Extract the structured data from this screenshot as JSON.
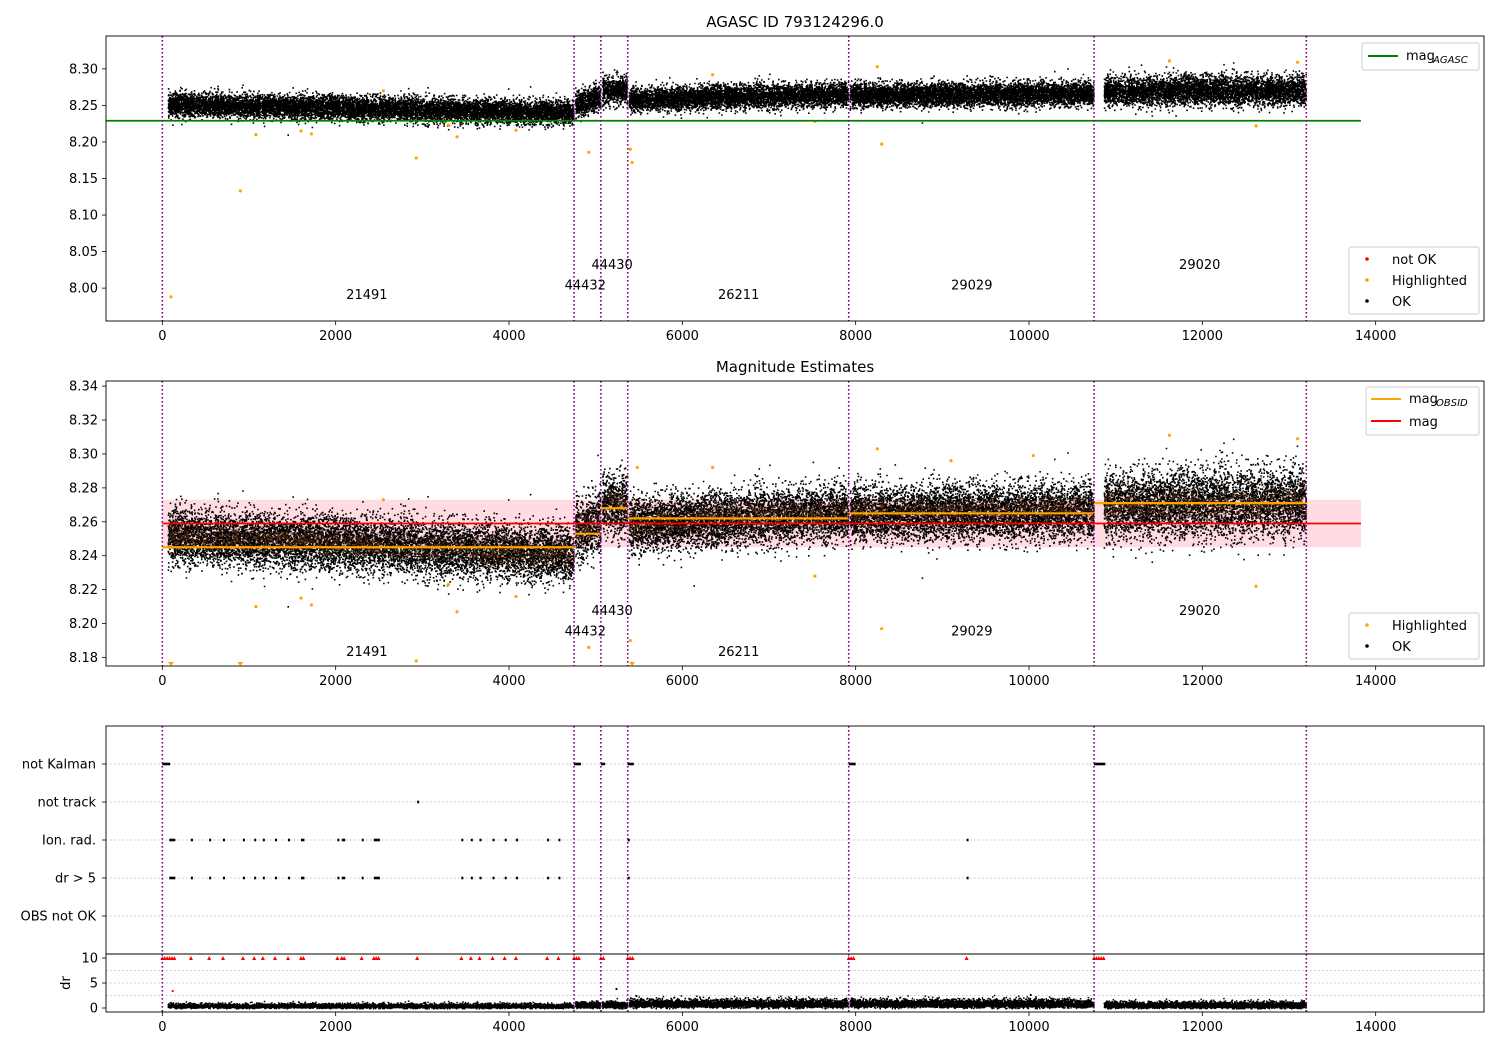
{
  "chart_data": [
    {
      "type": "scatter",
      "title": "AGASC ID 793124296.0",
      "xlim": [
        -650,
        15250
      ],
      "ylim": [
        7.955,
        8.345
      ],
      "x_ticks": [
        0,
        2000,
        4000,
        6000,
        8000,
        10000,
        12000,
        14000
      ],
      "y_ticks": [
        8.0,
        8.05,
        8.1,
        8.15,
        8.2,
        8.25,
        8.3
      ],
      "y_tick_labels": [
        "8.00",
        "8.05",
        "8.10",
        "8.15",
        "8.20",
        "8.25",
        "8.30"
      ],
      "grid": false,
      "obs_boundaries": [
        0,
        4750,
        5060,
        5370,
        7920,
        10750,
        13200
      ],
      "obs_labels": [
        {
          "text": "21491",
          "x": 2360,
          "y": 7.985
        },
        {
          "text": "44432",
          "x": 4880,
          "y": 7.998
        },
        {
          "text": "44430",
          "x": 5190,
          "y": 8.026
        },
        {
          "text": "26211",
          "x": 6650,
          "y": 7.985
        },
        {
          "text": "29029",
          "x": 9340,
          "y": 7.998
        },
        {
          "text": "29020",
          "x": 11970,
          "y": 8.026
        }
      ],
      "reference_line": {
        "name": "mag_AGASC",
        "value": 8.229,
        "x_range": [
          0,
          13830
        ],
        "color": "#008000"
      },
      "segments": [
        {
          "x0": 60,
          "x1": 4740,
          "y0": 8.252,
          "y1": 8.241,
          "spread": 0.008
        },
        {
          "x0": 4760,
          "x1": 5050,
          "y0": 8.253,
          "y1": 8.262,
          "spread": 0.009
        },
        {
          "x0": 5070,
          "x1": 5360,
          "y0": 8.272,
          "y1": 8.27,
          "spread": 0.009
        },
        {
          "x0": 5380,
          "x1": 7910,
          "y0": 8.259,
          "y1": 8.266,
          "spread": 0.008
        },
        {
          "x0": 7930,
          "x1": 10740,
          "y0": 8.265,
          "y1": 8.267,
          "spread": 0.008
        },
        {
          "x0": 10860,
          "x1": 13190,
          "y0": 8.27,
          "y1": 8.272,
          "spread": 0.01
        }
      ],
      "highlighted_points": [
        [
          100,
          7.988
        ],
        [
          900,
          8.133
        ],
        [
          1080,
          8.21
        ],
        [
          1600,
          8.215
        ],
        [
          1720,
          8.211
        ],
        [
          2930,
          8.178
        ],
        [
          3400,
          8.207
        ],
        [
          4080,
          8.216
        ],
        [
          4920,
          8.186
        ],
        [
          5400,
          8.19
        ],
        [
          5420,
          8.172
        ],
        [
          7530,
          8.228
        ],
        [
          8300,
          8.197
        ],
        [
          8250,
          8.303
        ],
        [
          12620,
          8.222
        ],
        [
          11620,
          8.311
        ],
        [
          13100,
          8.309
        ],
        [
          3300,
          8.223
        ],
        [
          2550,
          8.27
        ],
        [
          6350,
          8.292
        ]
      ],
      "legend": {
        "position": "lower-right",
        "items": [
          {
            "label": "not OK",
            "color": "#ff0000"
          },
          {
            "label": "Highlighted",
            "color": "#ffa500"
          },
          {
            "label": "OK",
            "color": "#000000"
          }
        ]
      },
      "legend_line": {
        "position": "upper-right",
        "label": "mag",
        "subscript": "AGASC",
        "color": "#008000"
      }
    },
    {
      "type": "scatter",
      "title": "Magnitude Estimates",
      "xlim": [
        -650,
        15250
      ],
      "ylim": [
        8.175,
        8.343
      ],
      "x_ticks": [
        0,
        2000,
        4000,
        6000,
        8000,
        10000,
        12000,
        14000
      ],
      "y_ticks": [
        8.18,
        8.2,
        8.22,
        8.24,
        8.26,
        8.28,
        8.3,
        8.32,
        8.34
      ],
      "y_tick_labels": [
        "8.18",
        "8.20",
        "8.22",
        "8.24",
        "8.26",
        "8.28",
        "8.30",
        "8.32",
        "8.34"
      ],
      "grid": false,
      "obs_boundaries": [
        0,
        4750,
        5060,
        5370,
        7920,
        10750,
        13200
      ],
      "obs_labels": [
        {
          "text": "21491",
          "x": 2360,
          "y": 8.181
        },
        {
          "text": "44432",
          "x": 4880,
          "y": 8.193
        },
        {
          "text": "44430",
          "x": 5190,
          "y": 8.205
        },
        {
          "text": "26211",
          "x": 6650,
          "y": 8.181
        },
        {
          "text": "29029",
          "x": 9340,
          "y": 8.193
        },
        {
          "text": "29020",
          "x": 11970,
          "y": 8.205
        }
      ],
      "mag_line": {
        "name": "mag",
        "value": 8.259,
        "x_range": [
          0,
          13830
        ],
        "band": [
          8.245,
          8.273
        ],
        "color": "#ff0000"
      },
      "obsid_mag": [
        {
          "x0": 0,
          "x1": 4750,
          "value": 8.245
        },
        {
          "x0": 4750,
          "x1": 5060,
          "value": 8.253
        },
        {
          "x0": 5060,
          "x1": 5370,
          "value": 8.268
        },
        {
          "x0": 5370,
          "x1": 7920,
          "value": 8.262
        },
        {
          "x0": 7920,
          "x1": 10750,
          "value": 8.265
        },
        {
          "x0": 10750,
          "x1": 13200,
          "value": 8.271
        }
      ],
      "segments": [
        {
          "x0": 60,
          "x1": 4740,
          "y0": 8.252,
          "y1": 8.241,
          "spread": 0.008
        },
        {
          "x0": 4760,
          "x1": 5050,
          "y0": 8.253,
          "y1": 8.262,
          "spread": 0.009
        },
        {
          "x0": 5070,
          "x1": 5360,
          "y0": 8.272,
          "y1": 8.27,
          "spread": 0.009
        },
        {
          "x0": 5380,
          "x1": 7910,
          "y0": 8.259,
          "y1": 8.266,
          "spread": 0.008
        },
        {
          "x0": 7930,
          "x1": 10740,
          "y0": 8.265,
          "y1": 8.267,
          "spread": 0.008
        },
        {
          "x0": 10860,
          "x1": 13190,
          "y0": 8.27,
          "y1": 8.272,
          "spread": 0.01
        }
      ],
      "highlighted_points": [
        [
          1080,
          8.21
        ],
        [
          1600,
          8.215
        ],
        [
          1720,
          8.211
        ],
        [
          2930,
          8.178
        ],
        [
          3400,
          8.207
        ],
        [
          4080,
          8.216
        ],
        [
          4920,
          8.186
        ],
        [
          5400,
          8.19
        ],
        [
          7530,
          8.228
        ],
        [
          8300,
          8.197
        ],
        [
          8250,
          8.303
        ],
        [
          12620,
          8.222
        ],
        [
          11620,
          8.311
        ],
        [
          13100,
          8.309
        ],
        [
          3300,
          8.223
        ],
        [
          2550,
          8.273
        ],
        [
          6350,
          8.292
        ],
        [
          5480,
          8.292
        ],
        [
          9100,
          8.296
        ],
        [
          10050,
          8.299
        ]
      ],
      "clipped_markers": [
        100,
        900,
        5420
      ],
      "legend": {
        "position": "lower-right",
        "items": [
          {
            "label": "Highlighted",
            "color": "#ffa500"
          },
          {
            "label": "OK",
            "color": "#000000"
          }
        ]
      },
      "legend_lines": {
        "position": "upper-right",
        "items": [
          {
            "label": "mag",
            "subscript": "OBSID",
            "color": "#ffa500"
          },
          {
            "label": "mag",
            "subscript": "",
            "color": "#ff0000"
          }
        ]
      }
    },
    {
      "type": "scatter",
      "title": "",
      "xlim": [
        -650,
        15250
      ],
      "categories": [
        "not Kalman",
        "not track",
        "Ion. rad.",
        "dr > 5",
        "OBS not OK"
      ],
      "obs_boundaries": [
        0,
        4750,
        5060,
        5370,
        7920,
        10750,
        13200
      ],
      "flags": {
        "not Kalman": [
          [
            0,
            90
          ],
          [
            4750,
            4830
          ],
          [
            5060,
            5110
          ],
          [
            5370,
            5440
          ],
          [
            7920,
            8000
          ],
          [
            10750,
            10880
          ]
        ],
        "not track": [
          [
            2940,
            2945
          ]
        ],
        "Ion. rad.": [
          [
            80,
            150
          ],
          [
            330,
            335
          ],
          [
            540,
            545
          ],
          [
            700,
            705
          ],
          [
            930,
            935
          ],
          [
            1060,
            1065
          ],
          [
            1160,
            1165
          ],
          [
            1300,
            1305
          ],
          [
            1450,
            1455
          ],
          [
            1600,
            1640
          ],
          [
            2020,
            2030
          ],
          [
            2070,
            2110
          ],
          [
            2300,
            2305
          ],
          [
            2440,
            2510
          ],
          [
            3450,
            3455
          ],
          [
            3560,
            3565
          ],
          [
            3660,
            3665
          ],
          [
            3810,
            3815
          ],
          [
            3950,
            3955
          ],
          [
            4080,
            4085
          ],
          [
            4440,
            4445
          ],
          [
            4570,
            4575
          ],
          [
            5370,
            5375
          ],
          [
            9280,
            9285
          ]
        ],
        "dr > 5": [
          [
            80,
            150
          ],
          [
            330,
            335
          ],
          [
            540,
            545
          ],
          [
            700,
            705
          ],
          [
            930,
            935
          ],
          [
            1060,
            1065
          ],
          [
            1160,
            1165
          ],
          [
            1300,
            1305
          ],
          [
            1450,
            1455
          ],
          [
            1600,
            1640
          ],
          [
            2020,
            2030
          ],
          [
            2070,
            2110
          ],
          [
            2300,
            2305
          ],
          [
            2440,
            2510
          ],
          [
            3450,
            3455
          ],
          [
            3560,
            3565
          ],
          [
            3660,
            3665
          ],
          [
            3810,
            3815
          ],
          [
            3950,
            3955
          ],
          [
            4080,
            4085
          ],
          [
            4440,
            4445
          ],
          [
            4570,
            4575
          ],
          [
            5370,
            5375
          ],
          [
            9280,
            9285
          ]
        ],
        "OBS not OK": []
      }
    },
    {
      "type": "scatter",
      "title": "",
      "ylabel": "dr",
      "xlim": [
        -650,
        15250
      ],
      "ylim": [
        -0.8,
        10.8
      ],
      "x_ticks": [
        0,
        2000,
        4000,
        6000,
        8000,
        10000,
        12000,
        14000
      ],
      "y_ticks": [
        0,
        5,
        10
      ],
      "y_tick_labels": [
        "0",
        "5",
        "10"
      ],
      "grid_y": [
        2.5,
        5,
        7.5
      ],
      "obs_boundaries": [
        0,
        4750,
        5060,
        5370,
        7920,
        10750,
        13200
      ],
      "capped_value": 10,
      "capped_x": [
        [
          0,
          150
        ],
        [
          330,
          335
        ],
        [
          540,
          545
        ],
        [
          700,
          705
        ],
        [
          930,
          935
        ],
        [
          1060,
          1065
        ],
        [
          1160,
          1165
        ],
        [
          1300,
          1305
        ],
        [
          1450,
          1455
        ],
        [
          1600,
          1640
        ],
        [
          2020,
          2030
        ],
        [
          2070,
          2110
        ],
        [
          2300,
          2305
        ],
        [
          2440,
          2510
        ],
        [
          2940,
          2945
        ],
        [
          3450,
          3455
        ],
        [
          3560,
          3565
        ],
        [
          3660,
          3665
        ],
        [
          3810,
          3815
        ],
        [
          3950,
          3955
        ],
        [
          4080,
          4085
        ],
        [
          4440,
          4445
        ],
        [
          4570,
          4575
        ],
        [
          4750,
          4830
        ],
        [
          5060,
          5110
        ],
        [
          5370,
          5440
        ],
        [
          7920,
          8000
        ],
        [
          9280,
          9285
        ],
        [
          10750,
          10880
        ]
      ],
      "outliers": [
        [
          120,
          3.4
        ],
        [
          5240,
          3.8
        ],
        [
          5470,
          2.4
        ],
        [
          10020,
          2.6
        ],
        [
          7960,
          1.7
        ]
      ],
      "segments": [
        {
          "x0": 60,
          "x1": 4740,
          "level": 0.45,
          "spread": 0.3
        },
        {
          "x0": 4760,
          "x1": 5050,
          "level": 0.6,
          "spread": 0.4
        },
        {
          "x0": 5070,
          "x1": 5360,
          "level": 0.6,
          "spread": 0.4
        },
        {
          "x0": 5380,
          "x1": 7910,
          "level": 0.85,
          "spread": 0.5
        },
        {
          "x0": 7930,
          "x1": 10740,
          "level": 0.85,
          "spread": 0.5
        },
        {
          "x0": 10860,
          "x1": 13190,
          "level": 0.6,
          "spread": 0.4
        }
      ]
    }
  ],
  "style": {
    "ok_color": "#000000",
    "highlight_color": "#ffa500",
    "not_ok_color": "#ff0000",
    "boundary_color": "#800080",
    "band_color": "#ffc0cb"
  }
}
